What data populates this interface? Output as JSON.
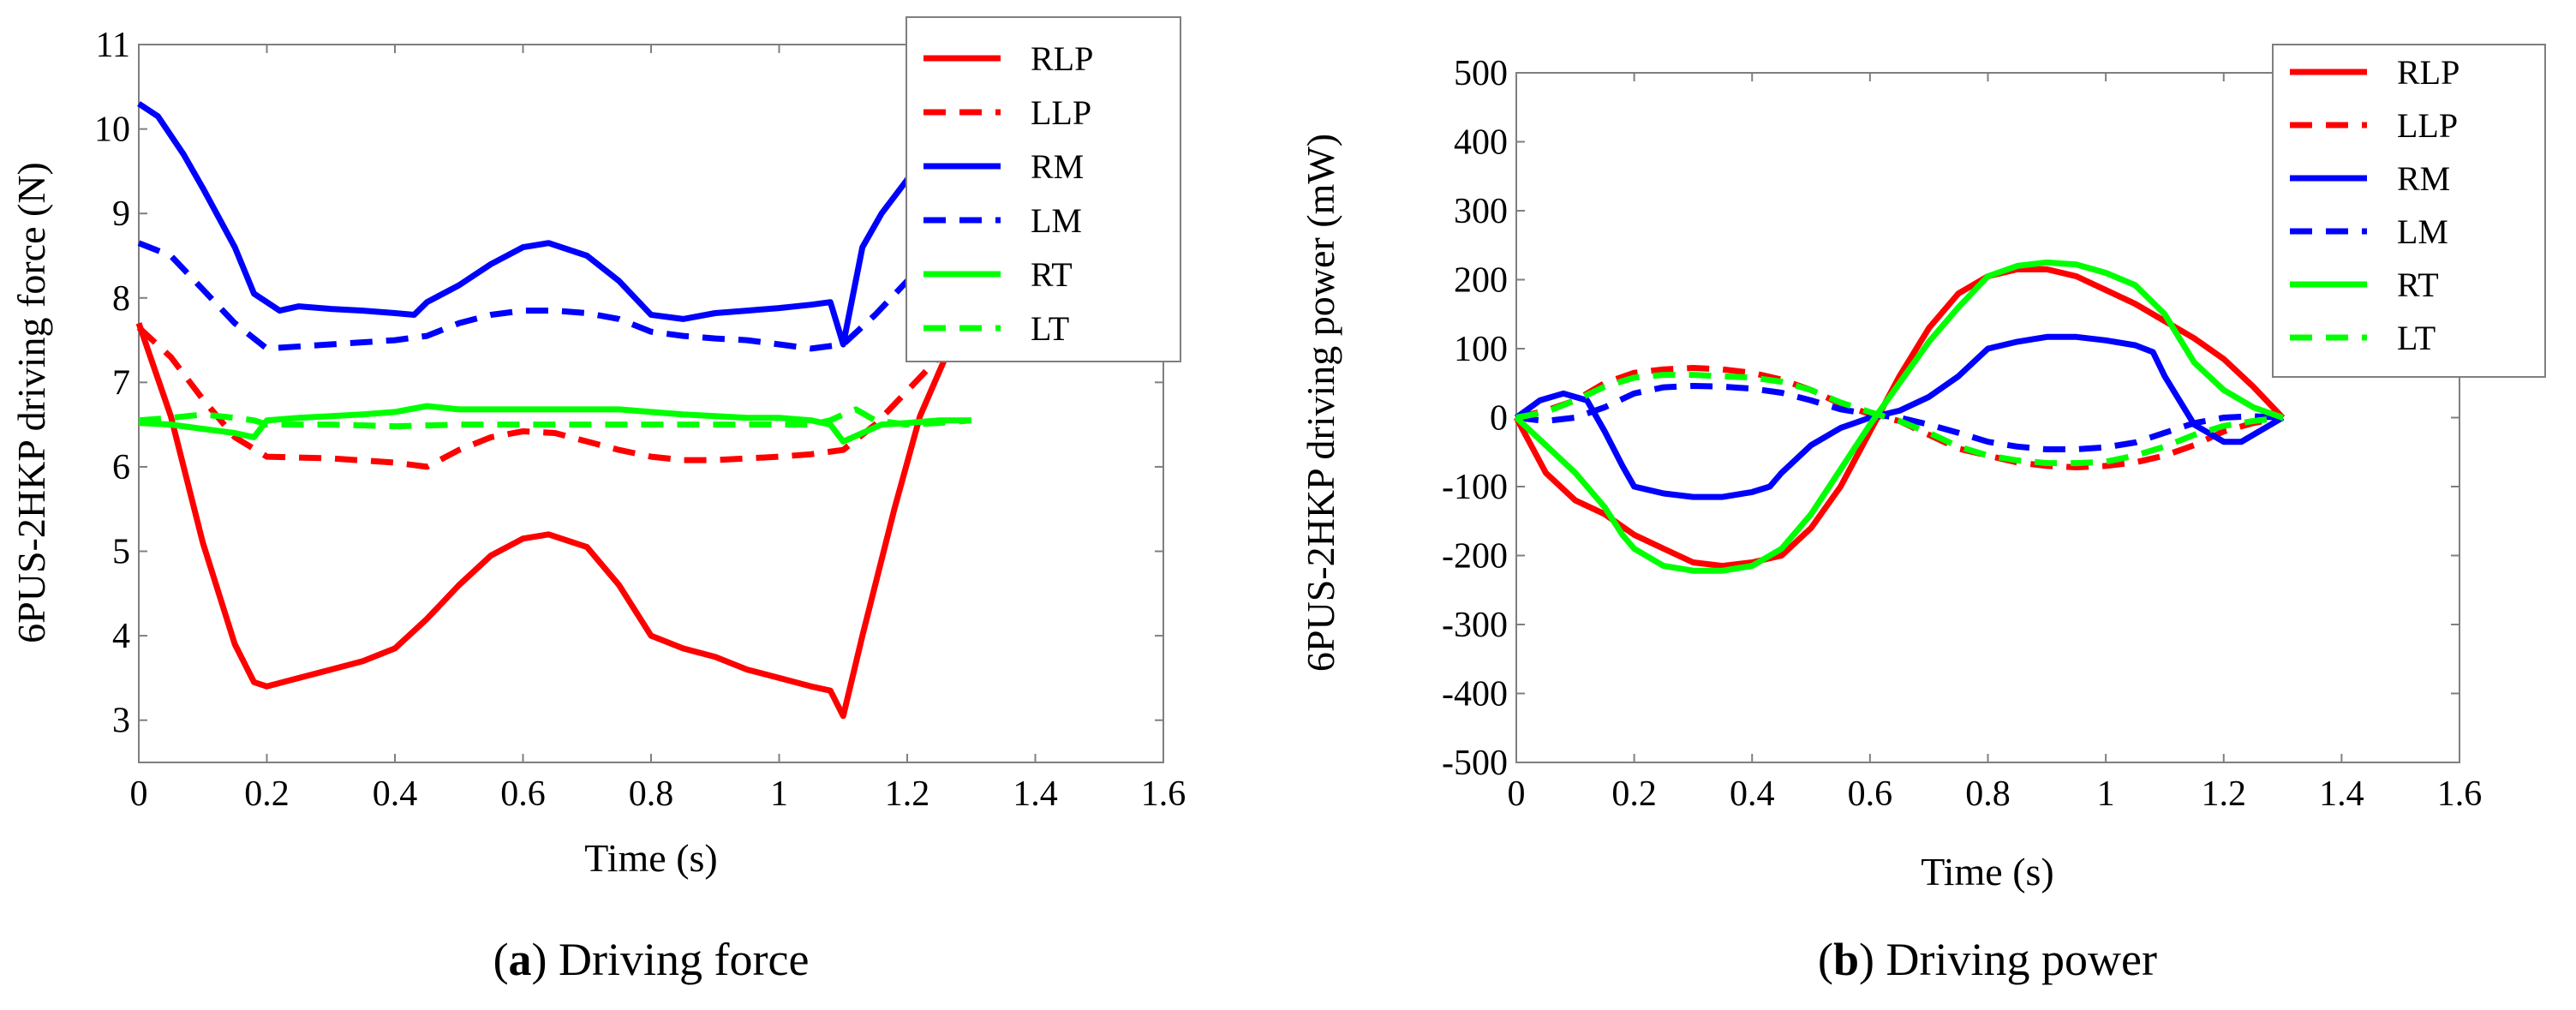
{
  "chart_data": [
    {
      "type": "line",
      "caption_letter": "a",
      "caption_text": "Driving force",
      "xlabel": "Time (s)",
      "ylabel": "6PUS-2HKP driving force (N)",
      "xlim": [
        0,
        1.6
      ],
      "ylim": [
        2.5,
        11
      ],
      "xticks": [
        0,
        0.2,
        0.4,
        0.6,
        0.8,
        1,
        1.2,
        1.4,
        1.6
      ],
      "xtick_labels": [
        "0",
        "0.2",
        "0.4",
        "0.6",
        "0.8",
        "1",
        "1.2",
        "1.4",
        "1.6"
      ],
      "yticks": [
        3,
        4,
        5,
        6,
        7,
        8,
        9,
        10,
        11
      ],
      "ytick_labels": [
        "3",
        "4",
        "5",
        "6",
        "7",
        "8",
        "9",
        "10",
        "11"
      ],
      "legend_position": "top-right, outside",
      "series": [
        {
          "name": "RLP",
          "color": "#ff0000",
          "style": "solid",
          "x": [
            0,
            0.05,
            0.1,
            0.15,
            0.18,
            0.2,
            0.25,
            0.3,
            0.35,
            0.4,
            0.45,
            0.5,
            0.55,
            0.6,
            0.64,
            0.7,
            0.75,
            0.8,
            0.85,
            0.9,
            0.95,
            1.0,
            1.05,
            1.08,
            1.1,
            1.13,
            1.18,
            1.22,
            1.26,
            1.3
          ],
          "y": [
            7.7,
            6.6,
            5.1,
            3.9,
            3.45,
            3.4,
            3.5,
            3.6,
            3.7,
            3.85,
            4.2,
            4.6,
            4.95,
            5.15,
            5.2,
            5.05,
            4.6,
            4.0,
            3.85,
            3.75,
            3.6,
            3.5,
            3.4,
            3.35,
            3.05,
            4.0,
            5.5,
            6.6,
            7.3,
            7.7
          ]
        },
        {
          "name": "LLP",
          "color": "#ff0000",
          "style": "dashed",
          "x": [
            0,
            0.05,
            0.1,
            0.15,
            0.2,
            0.3,
            0.4,
            0.45,
            0.5,
            0.55,
            0.6,
            0.65,
            0.7,
            0.75,
            0.8,
            0.85,
            0.9,
            0.95,
            1.0,
            1.05,
            1.1,
            1.15,
            1.2,
            1.25,
            1.3
          ],
          "y": [
            7.65,
            7.3,
            6.8,
            6.35,
            6.12,
            6.1,
            6.05,
            6.0,
            6.2,
            6.35,
            6.42,
            6.4,
            6.3,
            6.2,
            6.12,
            6.08,
            6.08,
            6.1,
            6.12,
            6.15,
            6.2,
            6.5,
            6.9,
            7.3,
            7.6
          ]
        },
        {
          "name": "RM",
          "color": "#0000ff",
          "style": "solid",
          "x": [
            0,
            0.03,
            0.07,
            0.1,
            0.15,
            0.18,
            0.2,
            0.22,
            0.25,
            0.3,
            0.35,
            0.4,
            0.43,
            0.45,
            0.5,
            0.55,
            0.6,
            0.64,
            0.7,
            0.75,
            0.8,
            0.85,
            0.9,
            0.95,
            1.0,
            1.05,
            1.08,
            1.1,
            1.13,
            1.16,
            1.2,
            1.25,
            1.3
          ],
          "y": [
            10.3,
            10.15,
            9.7,
            9.3,
            8.6,
            8.05,
            7.95,
            7.85,
            7.9,
            7.87,
            7.85,
            7.82,
            7.8,
            7.95,
            8.15,
            8.4,
            8.6,
            8.65,
            8.5,
            8.2,
            7.8,
            7.75,
            7.82,
            7.85,
            7.88,
            7.92,
            7.95,
            7.45,
            8.6,
            9.0,
            9.4,
            10.0,
            10.3
          ]
        },
        {
          "name": "LM",
          "color": "#0000ff",
          "style": "dashed",
          "x": [
            0,
            0.05,
            0.1,
            0.15,
            0.2,
            0.3,
            0.4,
            0.45,
            0.5,
            0.55,
            0.6,
            0.65,
            0.7,
            0.75,
            0.8,
            0.85,
            0.9,
            0.95,
            1.0,
            1.05,
            1.1,
            1.15,
            1.2,
            1.25,
            1.3
          ],
          "y": [
            8.65,
            8.5,
            8.1,
            7.7,
            7.4,
            7.45,
            7.5,
            7.55,
            7.7,
            7.8,
            7.85,
            7.85,
            7.82,
            7.75,
            7.6,
            7.55,
            7.52,
            7.5,
            7.45,
            7.4,
            7.45,
            7.8,
            8.2,
            8.5,
            8.65
          ]
        },
        {
          "name": "RT",
          "color": "#00ff00",
          "style": "solid",
          "x": [
            0,
            0.05,
            0.1,
            0.15,
            0.18,
            0.2,
            0.25,
            0.3,
            0.35,
            0.4,
            0.45,
            0.5,
            0.55,
            0.6,
            0.65,
            0.7,
            0.75,
            0.8,
            0.85,
            0.9,
            0.95,
            1.0,
            1.05,
            1.08,
            1.1,
            1.13,
            1.16,
            1.2,
            1.25,
            1.3
          ],
          "y": [
            6.52,
            6.5,
            6.45,
            6.4,
            6.35,
            6.55,
            6.58,
            6.6,
            6.62,
            6.65,
            6.72,
            6.68,
            6.68,
            6.68,
            6.68,
            6.68,
            6.68,
            6.65,
            6.62,
            6.6,
            6.58,
            6.58,
            6.55,
            6.5,
            6.3,
            6.4,
            6.5,
            6.52,
            6.55,
            6.55
          ]
        },
        {
          "name": "LT",
          "color": "#00ff00",
          "style": "dashed",
          "x": [
            0,
            0.05,
            0.1,
            0.15,
            0.18,
            0.2,
            0.3,
            0.4,
            0.5,
            0.6,
            0.7,
            0.8,
            0.9,
            1.0,
            1.05,
            1.08,
            1.1,
            1.12,
            1.15,
            1.2,
            1.25,
            1.3
          ],
          "y": [
            6.55,
            6.58,
            6.62,
            6.58,
            6.55,
            6.5,
            6.5,
            6.48,
            6.5,
            6.5,
            6.5,
            6.5,
            6.5,
            6.5,
            6.5,
            6.55,
            6.62,
            6.68,
            6.55,
            6.5,
            6.52,
            6.55
          ]
        }
      ]
    },
    {
      "type": "line",
      "caption_letter": "b",
      "caption_text": "Driving power",
      "xlabel": "Time (s)",
      "ylabel": "6PUS-2HKP driving power (mW)",
      "xlim": [
        0,
        1.6
      ],
      "ylim": [
        -500,
        500
      ],
      "xticks": [
        0,
        0.2,
        0.4,
        0.6,
        0.8,
        1,
        1.2,
        1.4,
        1.6
      ],
      "xtick_labels": [
        "0",
        "0.2",
        "0.4",
        "0.6",
        "0.8",
        "1",
        "1.2",
        "1.4",
        "1.6"
      ],
      "yticks": [
        500,
        400,
        300,
        200,
        100,
        0,
        -100,
        -200,
        -300,
        -400,
        -500
      ],
      "ytick_labels": [
        "500",
        "400",
        "300",
        "200",
        "100",
        "0",
        "-100",
        "-200",
        "-300",
        "-400",
        "-500"
      ],
      "legend_position": "top-right",
      "series": [
        {
          "name": "RLP",
          "color": "#ff0000",
          "style": "solid",
          "x": [
            0,
            0.05,
            0.1,
            0.15,
            0.2,
            0.25,
            0.3,
            0.35,
            0.4,
            0.45,
            0.5,
            0.55,
            0.6,
            0.65,
            0.7,
            0.75,
            0.8,
            0.85,
            0.9,
            0.95,
            1.0,
            1.05,
            1.1,
            1.15,
            1.2,
            1.25,
            1.3
          ],
          "y": [
            0,
            -80,
            -120,
            -140,
            -170,
            -190,
            -210,
            -215,
            -210,
            -200,
            -160,
            -100,
            -20,
            60,
            130,
            180,
            205,
            215,
            215,
            205,
            185,
            165,
            140,
            115,
            85,
            45,
            0
          ]
        },
        {
          "name": "LLP",
          "color": "#ff0000",
          "style": "dashed",
          "x": [
            0,
            0.05,
            0.1,
            0.15,
            0.2,
            0.25,
            0.3,
            0.35,
            0.4,
            0.45,
            0.5,
            0.55,
            0.6,
            0.65,
            0.7,
            0.75,
            0.8,
            0.85,
            0.9,
            0.95,
            1.0,
            1.05,
            1.1,
            1.15,
            1.2,
            1.25,
            1.3
          ],
          "y": [
            0,
            10,
            25,
            50,
            65,
            70,
            72,
            70,
            65,
            55,
            40,
            20,
            5,
            -5,
            -25,
            -45,
            -55,
            -65,
            -70,
            -72,
            -70,
            -65,
            -55,
            -40,
            -20,
            -8,
            0
          ]
        },
        {
          "name": "RM",
          "color": "#0000ff",
          "style": "solid",
          "x": [
            0,
            0.04,
            0.08,
            0.12,
            0.15,
            0.18,
            0.2,
            0.25,
            0.3,
            0.35,
            0.4,
            0.43,
            0.45,
            0.5,
            0.55,
            0.6,
            0.65,
            0.7,
            0.75,
            0.8,
            0.85,
            0.9,
            0.95,
            1.0,
            1.05,
            1.08,
            1.1,
            1.15,
            1.2,
            1.23,
            1.26,
            1.3
          ],
          "y": [
            0,
            25,
            35,
            25,
            -20,
            -70,
            -100,
            -110,
            -115,
            -115,
            -108,
            -100,
            -80,
            -40,
            -15,
            0,
            10,
            30,
            60,
            100,
            110,
            117,
            117,
            112,
            105,
            95,
            60,
            -10,
            -35,
            -35,
            -20,
            0
          ]
        },
        {
          "name": "LM",
          "color": "#0000ff",
          "style": "dashed",
          "x": [
            0,
            0.05,
            0.1,
            0.15,
            0.2,
            0.25,
            0.3,
            0.35,
            0.4,
            0.45,
            0.5,
            0.55,
            0.6,
            0.65,
            0.7,
            0.75,
            0.8,
            0.85,
            0.9,
            0.95,
            1.0,
            1.05,
            1.1,
            1.15,
            1.2,
            1.25,
            1.3
          ],
          "y": [
            0,
            -5,
            0,
            15,
            35,
            44,
            46,
            45,
            42,
            36,
            25,
            12,
            5,
            0,
            -10,
            -22,
            -35,
            -42,
            -46,
            -46,
            -43,
            -36,
            -22,
            -8,
            0,
            2,
            0
          ]
        },
        {
          "name": "RT",
          "color": "#00ff00",
          "style": "solid",
          "x": [
            0,
            0.05,
            0.1,
            0.15,
            0.18,
            0.2,
            0.25,
            0.3,
            0.35,
            0.4,
            0.45,
            0.5,
            0.55,
            0.6,
            0.65,
            0.7,
            0.75,
            0.8,
            0.85,
            0.9,
            0.95,
            1.0,
            1.05,
            1.1,
            1.15,
            1.2,
            1.25,
            1.3
          ],
          "y": [
            0,
            -40,
            -80,
            -130,
            -170,
            -190,
            -215,
            -222,
            -222,
            -215,
            -190,
            -140,
            -75,
            -10,
            50,
            110,
            160,
            205,
            220,
            225,
            222,
            210,
            192,
            150,
            80,
            40,
            15,
            0
          ]
        },
        {
          "name": "LT",
          "color": "#00ff00",
          "style": "dashed",
          "x": [
            0,
            0.05,
            0.1,
            0.15,
            0.2,
            0.25,
            0.3,
            0.35,
            0.4,
            0.45,
            0.5,
            0.55,
            0.6,
            0.65,
            0.7,
            0.75,
            0.8,
            0.85,
            0.9,
            0.95,
            1.0,
            1.05,
            1.1,
            1.15,
            1.2,
            1.25,
            1.3
          ],
          "y": [
            0,
            8,
            25,
            45,
            58,
            62,
            62,
            60,
            58,
            52,
            40,
            22,
            8,
            -5,
            -22,
            -42,
            -55,
            -62,
            -66,
            -66,
            -64,
            -55,
            -42,
            -25,
            -12,
            -5,
            0
          ]
        }
      ]
    }
  ]
}
